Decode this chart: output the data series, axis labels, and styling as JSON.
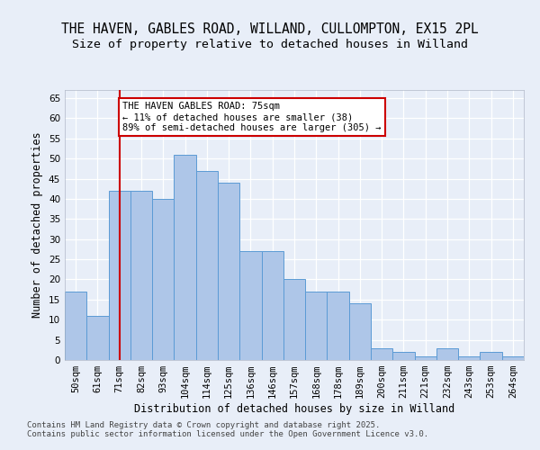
{
  "title_line1": "THE HAVEN, GABLES ROAD, WILLAND, CULLOMPTON, EX15 2PL",
  "title_line2": "Size of property relative to detached houses in Willand",
  "xlabel": "Distribution of detached houses by size in Willand",
  "ylabel": "Number of detached properties",
  "categories": [
    "50sqm",
    "61sqm",
    "71sqm",
    "82sqm",
    "93sqm",
    "104sqm",
    "114sqm",
    "125sqm",
    "136sqm",
    "146sqm",
    "157sqm",
    "168sqm",
    "178sqm",
    "189sqm",
    "200sqm",
    "211sqm",
    "221sqm",
    "232sqm",
    "243sqm",
    "253sqm",
    "264sqm"
  ],
  "values": [
    17,
    11,
    42,
    42,
    40,
    51,
    47,
    44,
    27,
    27,
    20,
    17,
    17,
    14,
    3,
    2,
    1,
    3,
    1,
    2,
    1
  ],
  "bar_color": "#aec6e8",
  "bar_edge_color": "#5b9bd5",
  "background_color": "#e8eef8",
  "grid_color": "#ffffff",
  "ref_line_x": 2,
  "ref_line_color": "#cc0000",
  "annotation_text": "THE HAVEN GABLES ROAD: 75sqm\n← 11% of detached houses are smaller (38)\n89% of semi-detached houses are larger (305) →",
  "annotation_box_color": "#cc0000",
  "ylim": [
    0,
    67
  ],
  "yticks": [
    0,
    5,
    10,
    15,
    20,
    25,
    30,
    35,
    40,
    45,
    50,
    55,
    60,
    65
  ],
  "footer_text": "Contains HM Land Registry data © Crown copyright and database right 2025.\nContains public sector information licensed under the Open Government Licence v3.0.",
  "title_fontsize": 10.5,
  "subtitle_fontsize": 9.5,
  "axis_label_fontsize": 8.5,
  "tick_fontsize": 7.5,
  "annotation_fontsize": 7.5,
  "footer_fontsize": 6.5
}
